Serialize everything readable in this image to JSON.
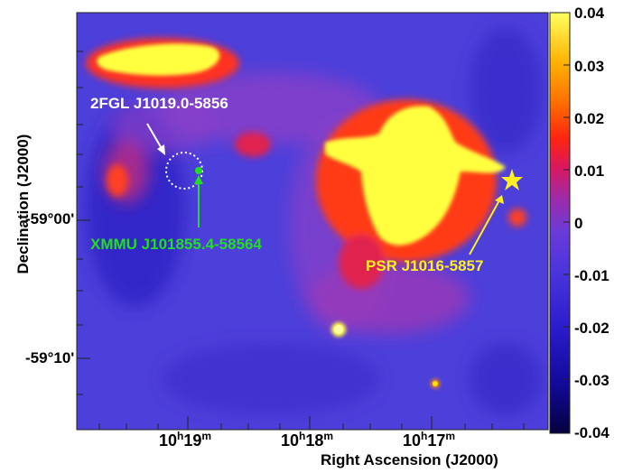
{
  "chart_data": {
    "type": "heatmap",
    "xlabel": "Right Ascension (J2000)",
    "ylabel": "Declination (J2000)",
    "x_ticks": [
      {
        "h": "10",
        "m": "19"
      },
      {
        "h": "10",
        "m": "18"
      },
      {
        "h": "10",
        "m": "17"
      }
    ],
    "y_ticks": [
      "-59°00'",
      "-59°10'"
    ],
    "colorbar": {
      "range": [
        -0.04,
        0.04
      ],
      "ticks": [
        "0.04",
        "0.03",
        "0.02",
        "0.01",
        "0",
        "-0.01",
        "-0.02",
        "-0.03",
        "-0.04"
      ],
      "colors": [
        "#08004a",
        "#1a0fb3",
        "#3a2cd6",
        "#5c3fe0",
        "#7a3ed8",
        "#b0209f",
        "#e0115a",
        "#ff2a10",
        "#ff7a00",
        "#ffc400",
        "#ffff50"
      ]
    },
    "annotations": [
      {
        "label": "2FGL J1019.0-5856",
        "color": "#ffffff",
        "marker": "dotted-circle"
      },
      {
        "label": "XMMU J101855.4-58564",
        "color": "#22dd22",
        "marker": "dot"
      },
      {
        "label": "PSR J1016-5857",
        "color": "#ffee22",
        "marker": "star"
      }
    ]
  },
  "colors": {
    "background_map": "#4a3bd6",
    "hot": "#ffff40",
    "warm": "#ff3a20"
  }
}
